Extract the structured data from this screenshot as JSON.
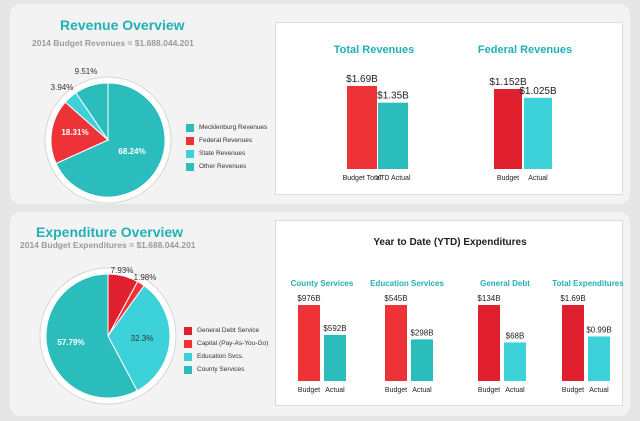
{
  "revenue": {
    "title": "Revenue Overview",
    "subtitle": "2014 Budget Revenues = $1.688.044.201"
  },
  "expenditure": {
    "title": "Expenditure Overview",
    "subtitle": "2014 Budget Expenditures = $1.688.044.201"
  },
  "colors": {
    "teal": "#2bbcbc",
    "red": "#ee3338",
    "darkred": "#e0202f",
    "cyan": "#3dd2d9",
    "title": "#21b0b5"
  },
  "chart_data": [
    {
      "type": "pie",
      "id": "revenue-pie",
      "slices": [
        {
          "label": "Mecklenburg Revenues",
          "value": 68.24,
          "display": "68.24%",
          "color": "#2bbcbc"
        },
        {
          "label": "Federal Revenues",
          "value": 18.31,
          "display": "18.31%",
          "color": "#ee3338"
        },
        {
          "label": "State Revenues",
          "value": 3.94,
          "display": "3.94%",
          "color": "#3dd2d9"
        },
        {
          "label": "Other Revenues",
          "value": 9.51,
          "display": "9.51%",
          "color": "#2bbcbc"
        }
      ]
    },
    {
      "type": "pie",
      "id": "expenditure-pie",
      "slices": [
        {
          "label": "General Debt Service",
          "value": 7.93,
          "display": "7.93%",
          "color": "#e0202f"
        },
        {
          "label": "Capital (Pay-As-You-Go)",
          "value": 1.98,
          "display": "1.98%",
          "color": "#ee3338"
        },
        {
          "label": "Education Svcs.",
          "value": 32.3,
          "display": "32.3%",
          "color": "#3dd2d9"
        },
        {
          "label": "County Services",
          "value": 57.79,
          "display": "57.79%",
          "color": "#2bbcbc"
        }
      ]
    },
    {
      "type": "bar",
      "id": "total-revenues",
      "title": "Total Revenues",
      "categories": [
        "Budget Total",
        "YTD Actual"
      ],
      "values": [
        1.69,
        1.35
      ],
      "labels": [
        "$1.69B",
        "$1.35B"
      ],
      "colors": [
        "#ee3338",
        "#2bbcbc"
      ]
    },
    {
      "type": "bar",
      "id": "federal-revenues",
      "title": "Federal Revenues",
      "categories": [
        "Budget",
        "Actual"
      ],
      "values": [
        1.152,
        1.025
      ],
      "labels": [
        "$1.152B",
        "$1.025B"
      ],
      "colors": [
        "#e0202f",
        "#3dd2d9"
      ]
    },
    {
      "type": "bar",
      "id": "county-services",
      "title": "County Services",
      "categories": [
        "Budget",
        "Actual"
      ],
      "values": [
        976,
        592
      ],
      "labels": [
        "$976B",
        "$592B"
      ],
      "colors": [
        "#ee3338",
        "#2bbcbc"
      ]
    },
    {
      "type": "bar",
      "id": "education-services",
      "title": "Education Services",
      "categories": [
        "Budget",
        "Actual"
      ],
      "values": [
        545,
        298
      ],
      "labels": [
        "$545B",
        "$298B"
      ],
      "colors": [
        "#ee3338",
        "#2bbcbc"
      ]
    },
    {
      "type": "bar",
      "id": "general-debt",
      "title": "General Debt",
      "categories": [
        "Budget",
        "Actual"
      ],
      "values": [
        134,
        68
      ],
      "labels": [
        "$134B",
        "$68B"
      ],
      "colors": [
        "#e0202f",
        "#3dd2d9"
      ]
    },
    {
      "type": "bar",
      "id": "total-expenditures",
      "title": "Total Expenditures",
      "categories": [
        "Budget",
        "Actual"
      ],
      "values": [
        1.69,
        0.99
      ],
      "labels": [
        "$1.69B",
        "$0.99B"
      ],
      "colors": [
        "#e0202f",
        "#3dd2d9"
      ]
    }
  ],
  "ytd_title": "Year to Date (YTD) Expenditures"
}
